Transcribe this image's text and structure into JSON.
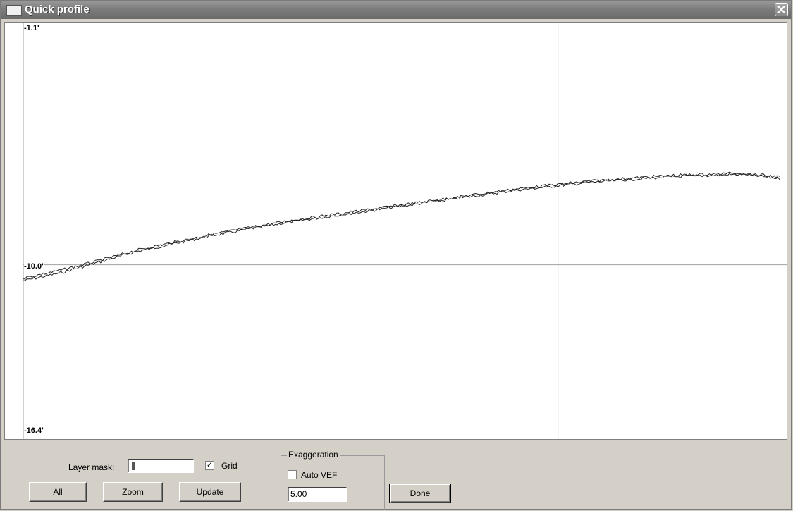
{
  "window": {
    "title": "Quick profile"
  },
  "chart_data": {
    "type": "line",
    "y_axis_labels": [
      "-1.1'",
      "-10.0'",
      "-16.4'"
    ],
    "ylim": [
      -16.4,
      -1.1
    ],
    "grid": true,
    "series": [
      {
        "values_by_fraction": [
          [
            0.0,
            -10.6
          ],
          [
            0.05,
            -10.3
          ],
          [
            0.1,
            -9.9
          ],
          [
            0.15,
            -9.5
          ],
          [
            0.2,
            -9.2
          ],
          [
            0.25,
            -8.9
          ],
          [
            0.3,
            -8.65
          ],
          [
            0.35,
            -8.4
          ],
          [
            0.4,
            -8.2
          ],
          [
            0.45,
            -8.0
          ],
          [
            0.5,
            -7.8
          ],
          [
            0.55,
            -7.6
          ],
          [
            0.6,
            -7.4
          ],
          [
            0.65,
            -7.2
          ],
          [
            0.7,
            -7.05
          ],
          [
            0.75,
            -6.9
          ],
          [
            0.8,
            -6.8
          ],
          [
            0.85,
            -6.7
          ],
          [
            0.9,
            -6.65
          ],
          [
            0.95,
            -6.6
          ],
          [
            1.0,
            -6.75
          ]
        ]
      },
      {
        "values_by_fraction": [
          [
            0.0,
            -10.5
          ],
          [
            0.05,
            -10.2
          ],
          [
            0.1,
            -9.85
          ],
          [
            0.15,
            -9.45
          ],
          [
            0.2,
            -9.15
          ],
          [
            0.25,
            -8.85
          ],
          [
            0.3,
            -8.6
          ],
          [
            0.35,
            -8.35
          ],
          [
            0.4,
            -8.15
          ],
          [
            0.45,
            -7.95
          ],
          [
            0.5,
            -7.75
          ],
          [
            0.55,
            -7.55
          ],
          [
            0.6,
            -7.35
          ],
          [
            0.65,
            -7.15
          ],
          [
            0.7,
            -7.0
          ],
          [
            0.75,
            -6.85
          ],
          [
            0.8,
            -6.75
          ],
          [
            0.85,
            -6.65
          ],
          [
            0.9,
            -6.6
          ],
          [
            0.95,
            -6.55
          ],
          [
            1.0,
            -6.7
          ]
        ]
      }
    ]
  },
  "controls": {
    "layer_mask_label": "Layer mask:",
    "layer_mask_value": "",
    "grid_label": "Grid",
    "grid_checked": true,
    "exaggeration_legend": "Exaggeration",
    "auto_vef_label": "Auto VEF",
    "auto_vef_checked": false,
    "exaggeration_value": "5.00",
    "all_label": "All",
    "zoom_label": "Zoom",
    "update_label": "Update",
    "done_label": "Done"
  }
}
